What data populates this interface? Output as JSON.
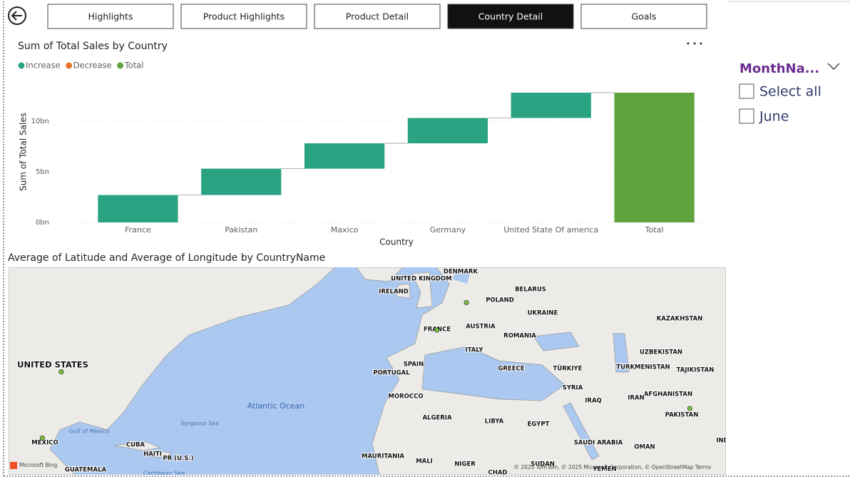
{
  "nav": [
    "Highlights",
    "Product Highlights",
    "Product Detail",
    "Country Detail",
    "Goals"
  ],
  "active_tab": 3,
  "slicer": {
    "title": "MonthNa...",
    "options": [
      "Select all",
      "June"
    ]
  },
  "chart_data": [
    {
      "type": "waterfall",
      "title": "Sum of Total Sales by Country",
      "legend": [
        {
          "name": "Increase",
          "color": "#2aa383"
        },
        {
          "name": "Decrease",
          "color": "#e8752a"
        },
        {
          "name": "Total",
          "color": "#5ea33e"
        }
      ],
      "categories": [
        "France",
        "Pakistan",
        "Maxico",
        "Germany",
        "United State Of america",
        "Total"
      ],
      "values": [
        2.7,
        2.6,
        2.5,
        2.5,
        2.5,
        12.8
      ],
      "bar_kinds": [
        "increase",
        "increase",
        "increase",
        "increase",
        "increase",
        "total"
      ],
      "x_label": "Country",
      "y_label": "Sum of Total Sales",
      "ylim": [
        0,
        13.5
      ],
      "yticks": [
        {
          "value": 0,
          "label": "0bn"
        },
        {
          "value": 5,
          "label": "5bn"
        },
        {
          "value": 10,
          "label": "10bn"
        }
      ],
      "grid": true
    },
    {
      "type": "map",
      "title": "Average of Latitude and Average of Longitude by CountryName",
      "point_color": "#7bbf3c",
      "points": [
        {
          "lat": 46.2,
          "lon": 2.2
        },
        {
          "lat": 51,
          "lon": 10
        },
        {
          "lat": 30,
          "lon": 69
        },
        {
          "lat": 38,
          "lon": -97
        },
        {
          "lat": 23,
          "lon": -102
        }
      ],
      "labels": [
        "DENMARK",
        "UNITED KINGDOM",
        "IRELAND",
        "BELARUS",
        "POLAND",
        "UKRAINE",
        "KAZAKHSTAN",
        "FRANCE",
        "AUSTRIA",
        "ROMANIA",
        "ITALY",
        "UZBEKISTAN",
        "SPAIN",
        "UNITED STATES",
        "PORTUGAL",
        "GREECE",
        "TÜRKIYE",
        "TURKMENISTAN",
        "TAJIKISTAN",
        "SYRIA",
        "AFGHANISTAN",
        "IRAQ",
        "IRAN",
        "Atlantic Ocean",
        "MOROCCO",
        "PAKISTAN",
        "ALGERIA",
        "LIBYA",
        "EGYPT",
        "Sargasso Sea",
        "Gulf of Mexico",
        "MEXICO",
        "CUBA",
        "HAITI",
        "PR (U.S.)",
        "SAUDI ARABIA",
        "OMAN",
        "MAURITANIA",
        "MALI",
        "NIGER",
        "SUDAN",
        "CHAD",
        "GUATEMALA",
        "Caribbean Sea",
        "YEMEN",
        "IND"
      ],
      "brand": "Microsoft Bing",
      "attribution": "© 2025 TomTom, © 2025 Microsoft Corporation, © OpenStreetMap  Terms"
    }
  ]
}
